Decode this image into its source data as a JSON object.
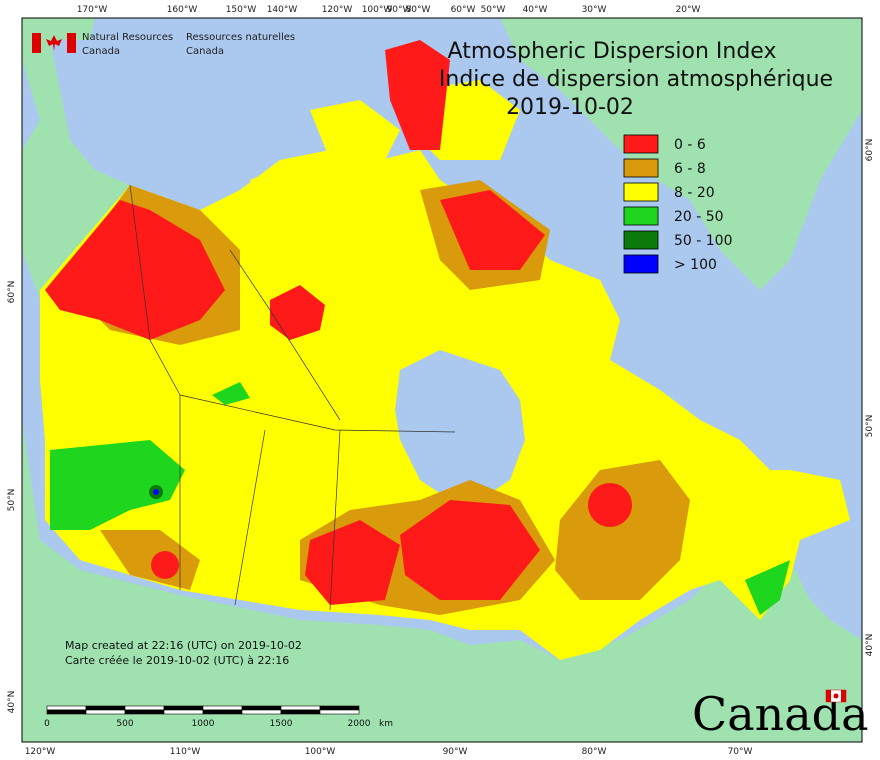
{
  "header": {
    "org_en": [
      "Natural Resources",
      "Canada"
    ],
    "org_fr": [
      "Ressources naturelles",
      "Canada"
    ]
  },
  "title": [
    "Atmospheric Dispersion Index",
    "Indice de dispersion atmosphérique",
    "2019-10-02"
  ],
  "legend": {
    "items": [
      {
        "label": "0 - 6",
        "color": "#ff1a1a"
      },
      {
        "label": "6 - 8",
        "color": "#d99a0b"
      },
      {
        "label": "8 - 20",
        "color": "#ffff00"
      },
      {
        "label": "20 - 50",
        "color": "#1ed61e"
      },
      {
        "label": "50 - 100",
        "color": "#0a7a0a"
      },
      {
        "label": "> 100",
        "color": "#0000ff"
      }
    ]
  },
  "notes": [
    "Map created at 22:16 (UTC) on 2019-10-02",
    "Carte créée le 2019-10-02 (UTC) à 22:16"
  ],
  "scale_bar": {
    "labels": [
      "0",
      "500",
      "1000",
      "1500",
      "2000",
      "km"
    ]
  },
  "graticule": {
    "top": [
      "170°W",
      "160°W",
      "150°W",
      "140°W",
      "120°W",
      "100°W",
      "90°W",
      "80°W",
      "60°W",
      "50°W",
      "40°W",
      "30°W",
      "20°W"
    ],
    "bottom": [
      "120°W",
      "110°W",
      "100°W",
      "90°W",
      "80°W",
      "70°W"
    ],
    "left": [
      "60°N",
      "50°N",
      "40°N"
    ],
    "right": [
      "60°N",
      "50°N",
      "40°N"
    ]
  },
  "wordmark": "Canada"
}
